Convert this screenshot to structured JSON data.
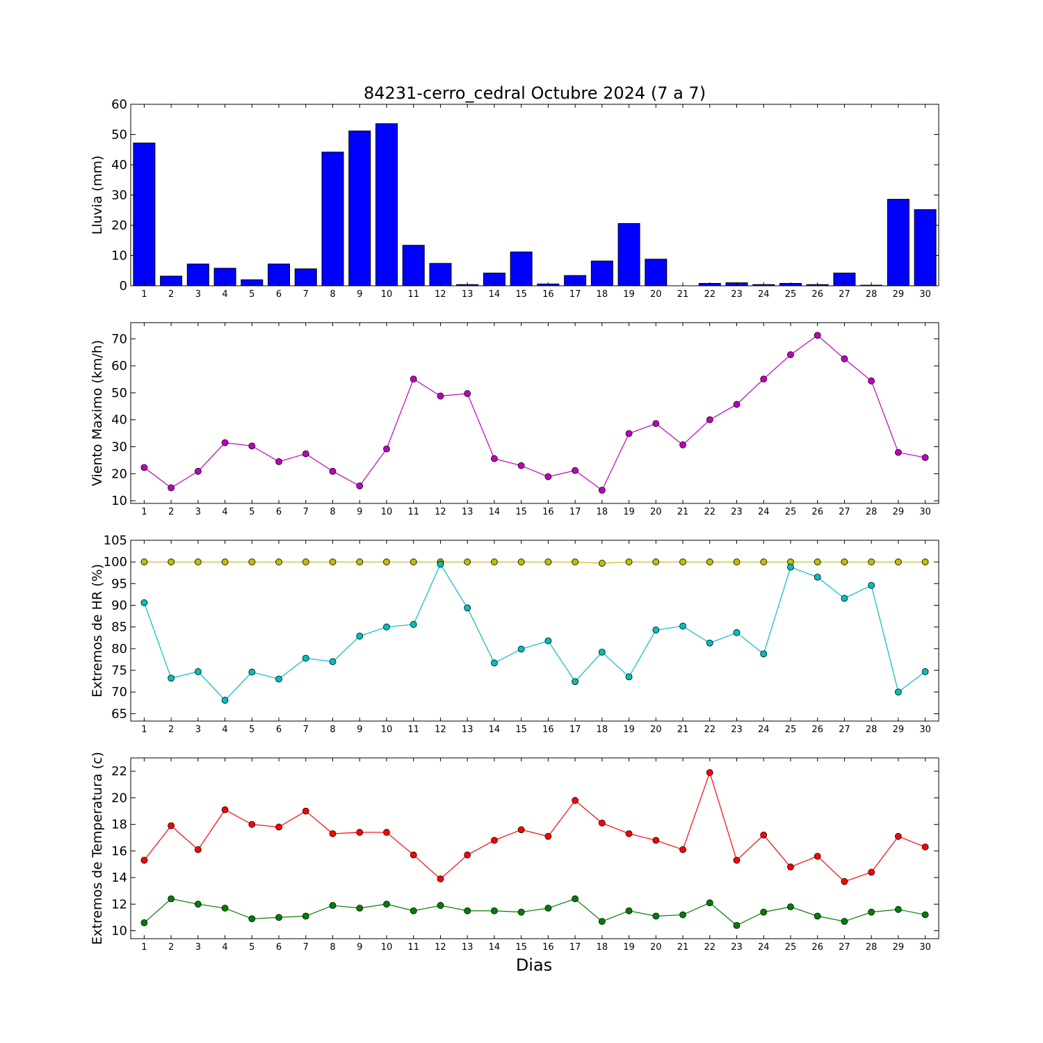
{
  "figure": {
    "title": "84231-cerro_cedral Octubre 2024  (7 a 7)",
    "xlabel": "Dias"
  },
  "chart_data": [
    {
      "type": "bar",
      "name": "lluvia",
      "ylabel": "Lluvia (mm)",
      "categories": [
        "1",
        "2",
        "3",
        "4",
        "5",
        "6",
        "7",
        "8",
        "9",
        "10",
        "11",
        "12",
        "13",
        "14",
        "15",
        "16",
        "17",
        "18",
        "19",
        "20",
        "21",
        "22",
        "23",
        "24",
        "25",
        "26",
        "27",
        "28",
        "29",
        "30"
      ],
      "values": [
        47.2,
        3.2,
        7.2,
        5.8,
        2.0,
        7.2,
        5.6,
        44.2,
        51.2,
        53.6,
        13.4,
        7.4,
        0.4,
        4.2,
        11.2,
        0.6,
        3.4,
        8.2,
        20.6,
        8.8,
        0.0,
        0.8,
        1.0,
        0.4,
        0.8,
        0.4,
        4.2,
        0.2,
        28.6,
        25.2
      ],
      "ylim": [
        0,
        60
      ],
      "yticks": [
        "0",
        "10",
        "20",
        "30",
        "40",
        "50",
        "60"
      ],
      "colors": {
        "bar": "#0000ff"
      }
    },
    {
      "type": "line",
      "name": "viento",
      "ylabel": "Viento Maximo (km/h)",
      "categories": [
        "1",
        "2",
        "3",
        "4",
        "5",
        "6",
        "7",
        "8",
        "9",
        "10",
        "11",
        "12",
        "13",
        "14",
        "15",
        "16",
        "17",
        "18",
        "19",
        "20",
        "21",
        "22",
        "23",
        "24",
        "25",
        "26",
        "27",
        "28",
        "29",
        "30"
      ],
      "series": [
        {
          "values": [
            22.3,
            14.8,
            20.9,
            31.5,
            30.3,
            24.5,
            27.4,
            20.9,
            15.5,
            29.2,
            55.1,
            48.8,
            49.7,
            25.6,
            23.0,
            18.9,
            21.2,
            13.9,
            34.9,
            38.6,
            30.7,
            40.0,
            45.7,
            55.1,
            64.1,
            71.3,
            62.6,
            54.4,
            27.9,
            26.0
          ],
          "color": "#bf00bf"
        }
      ],
      "ylim": [
        9,
        76
      ],
      "yticks": [
        "10",
        "20",
        "30",
        "40",
        "50",
        "60",
        "70"
      ]
    },
    {
      "type": "line",
      "name": "humedad",
      "ylabel": "Extremos de HR (%)",
      "categories": [
        "1",
        "2",
        "3",
        "4",
        "5",
        "6",
        "7",
        "8",
        "9",
        "10",
        "11",
        "12",
        "13",
        "14",
        "15",
        "16",
        "17",
        "18",
        "19",
        "20",
        "21",
        "22",
        "23",
        "24",
        "25",
        "26",
        "27",
        "28",
        "29",
        "30"
      ],
      "series": [
        {
          "values": [
            100,
            100,
            100,
            100,
            100,
            100,
            100,
            100,
            100,
            100,
            100,
            100,
            100,
            100,
            100,
            100,
            100,
            99.7,
            100,
            100,
            100,
            100,
            100,
            100,
            100,
            100,
            100,
            100,
            100,
            100
          ],
          "color": "#bfbf00"
        },
        {
          "values": [
            90.6,
            73.2,
            74.7,
            68.1,
            74.6,
            73.0,
            77.8,
            77.0,
            82.9,
            85.0,
            85.6,
            99.5,
            89.4,
            76.7,
            79.9,
            81.8,
            72.4,
            79.2,
            73.5,
            84.3,
            85.2,
            81.3,
            83.7,
            78.8,
            98.8,
            96.5,
            91.6,
            94.6,
            70.0,
            74.7
          ],
          "color": "#00bfbf"
        }
      ],
      "ylim": [
        63.3,
        105
      ],
      "yticks": [
        "65",
        "70",
        "75",
        "80",
        "85",
        "90",
        "95",
        "100",
        "105"
      ]
    },
    {
      "type": "line",
      "name": "temperatura",
      "ylabel": "Extremos de Temperatura (c)",
      "categories": [
        "1",
        "2",
        "3",
        "4",
        "5",
        "6",
        "7",
        "8",
        "9",
        "10",
        "11",
        "12",
        "13",
        "14",
        "15",
        "16",
        "17",
        "18",
        "19",
        "20",
        "21",
        "22",
        "23",
        "24",
        "25",
        "26",
        "27",
        "28",
        "29",
        "30"
      ],
      "series": [
        {
          "values": [
            15.3,
            17.9,
            16.1,
            19.1,
            18.0,
            17.8,
            19.0,
            17.3,
            17.4,
            17.4,
            15.7,
            13.9,
            15.7,
            16.8,
            17.6,
            17.1,
            19.8,
            18.1,
            17.3,
            16.8,
            16.1,
            21.9,
            15.3,
            17.2,
            14.8,
            15.6,
            13.7,
            14.4,
            17.1,
            16.3
          ],
          "color": "#ff0000"
        },
        {
          "values": [
            10.6,
            12.4,
            12.0,
            11.7,
            10.9,
            11.0,
            11.1,
            11.9,
            11.7,
            12.0,
            11.5,
            11.9,
            11.5,
            11.5,
            11.4,
            11.7,
            12.4,
            10.7,
            11.5,
            11.1,
            11.2,
            12.1,
            10.4,
            11.4,
            11.8,
            11.1,
            10.7,
            11.4,
            11.6,
            11.2
          ],
          "color": "#008000"
        }
      ],
      "ylim": [
        9.4,
        23
      ],
      "yticks": [
        "10",
        "12",
        "14",
        "16",
        "18",
        "20",
        "22"
      ]
    }
  ]
}
